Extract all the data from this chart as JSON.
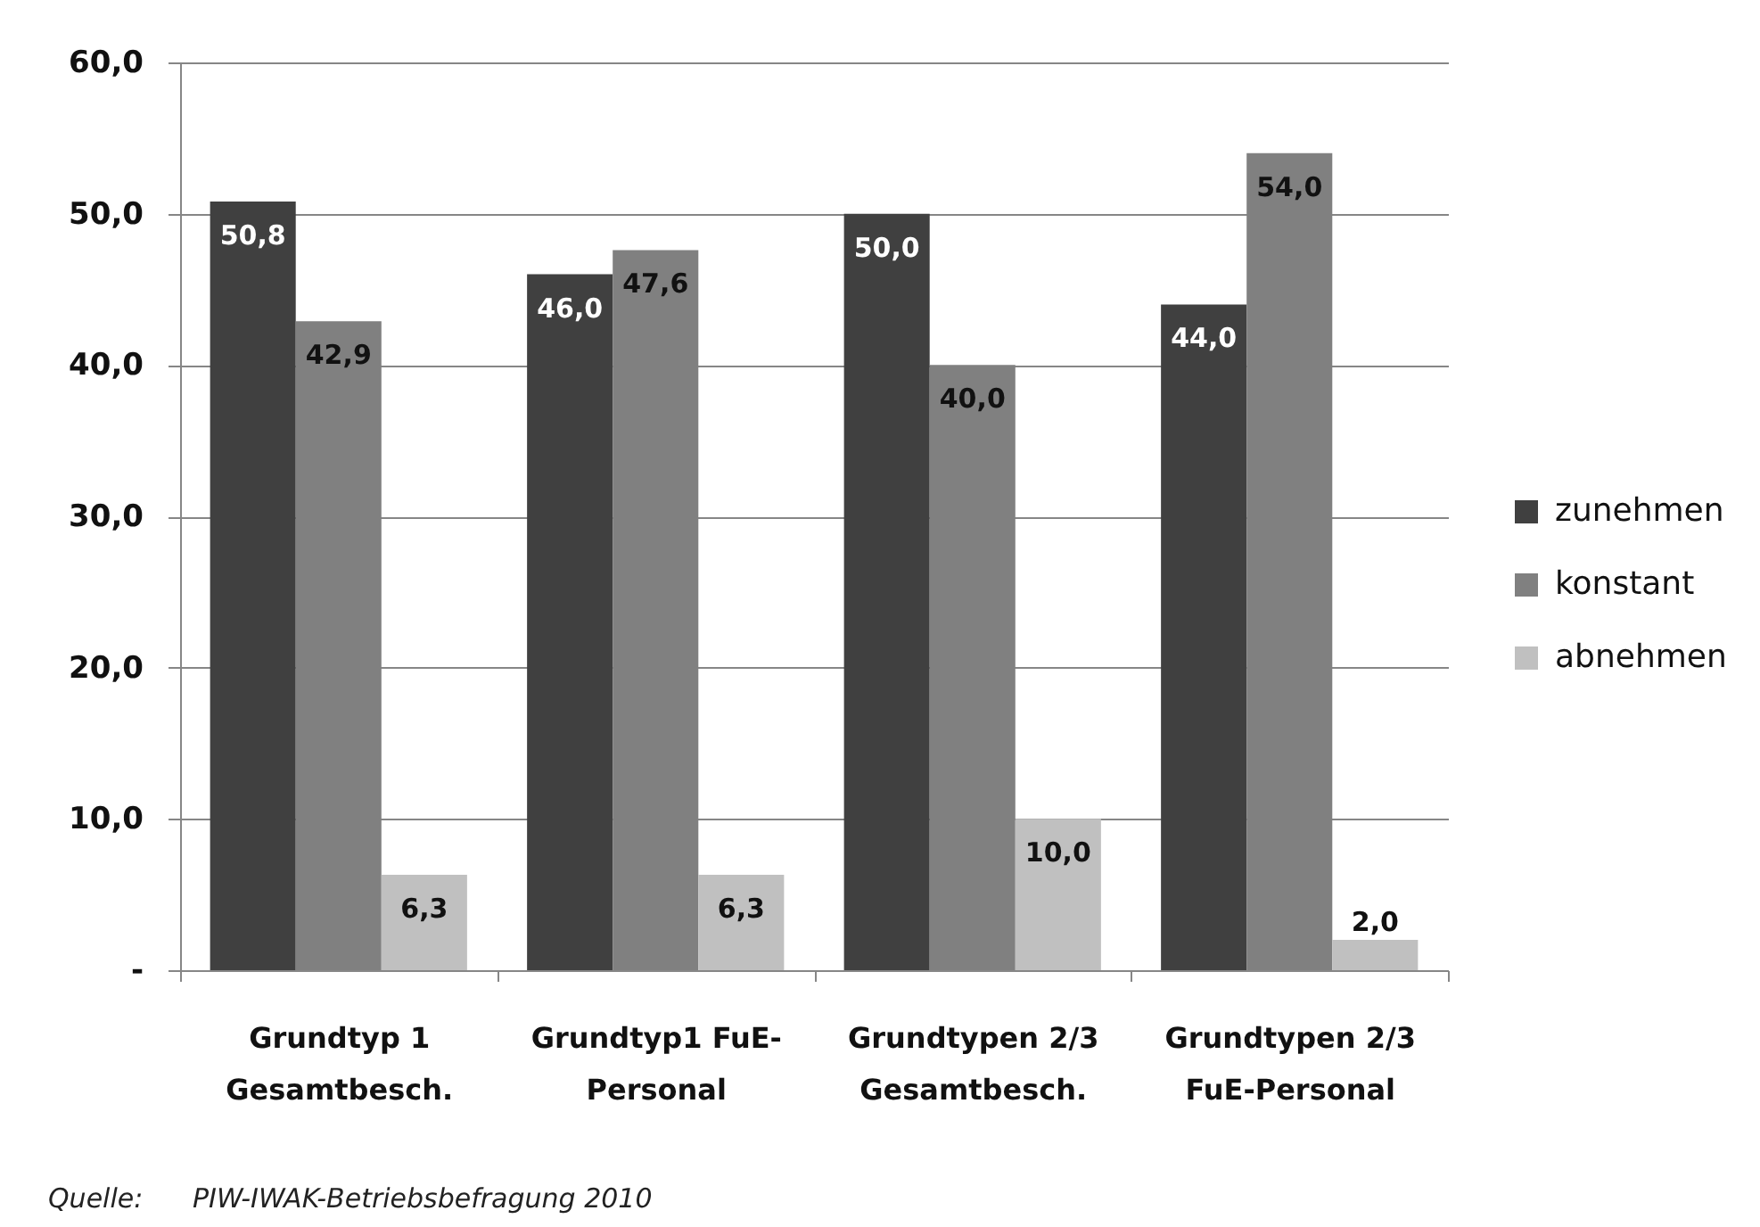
{
  "chart_data": {
    "type": "bar",
    "categories": [
      "Grundtyp 1\nGesamtbesch.",
      "Grundtyp1 FuE-\nPersonal",
      "Grundtypen 2/3\nGesamtbesch.",
      "Grundtypen 2/3\nFuE-Personal"
    ],
    "series": [
      {
        "name": "zunehmen",
        "color": "#404040",
        "values": [
          50.8,
          46.0,
          50.0,
          44.0
        ],
        "value_labels": [
          "50,8",
          "46,0",
          "50,0",
          "44,0"
        ]
      },
      {
        "name": "konstant",
        "color": "#808080",
        "values": [
          42.9,
          47.6,
          40.0,
          54.0
        ],
        "value_labels": [
          "42,9",
          "47,6",
          "40,0",
          "54,0"
        ]
      },
      {
        "name": "abnehmen",
        "color": "#c0c0c0",
        "values": [
          6.3,
          6.3,
          10.0,
          2.0
        ],
        "value_labels": [
          "6,3",
          "6,3",
          "10,0",
          "2,0"
        ]
      }
    ],
    "ylim": [
      0,
      60
    ],
    "yticks": [
      {
        "value": 0,
        "label": "-"
      },
      {
        "value": 10,
        "label": "10,0"
      },
      {
        "value": 20,
        "label": "20,0"
      },
      {
        "value": 30,
        "label": "30,0"
      },
      {
        "value": 40,
        "label": "40,0"
      },
      {
        "value": 50,
        "label": "50,0"
      },
      {
        "value": 60,
        "label": "60,0"
      }
    ],
    "grid": "y",
    "legend": "right",
    "annotations": [
      "Quelle:",
      "PIW-IWAK-Betriebsbefragung 2010"
    ]
  }
}
